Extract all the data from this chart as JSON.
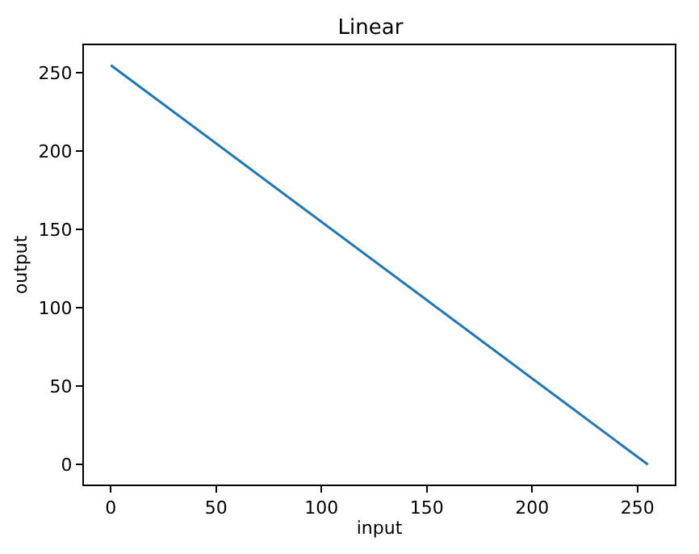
{
  "chart_data": {
    "type": "line",
    "title": "Linear",
    "xlabel": "input",
    "ylabel": "output",
    "x": [
      0,
      255
    ],
    "series": [
      {
        "color": "#1f77b4",
        "values": [
          255,
          0
        ]
      }
    ],
    "xlim": [
      -12.75,
      267.75
    ],
    "xticks": [
      0,
      50,
      100,
      150,
      200,
      250
    ],
    "ylim": [
      -12.75,
      267.75
    ],
    "yticks": [
      0,
      50,
      100,
      150,
      200,
      250
    ],
    "marker": "none",
    "line_style": "solid"
  }
}
